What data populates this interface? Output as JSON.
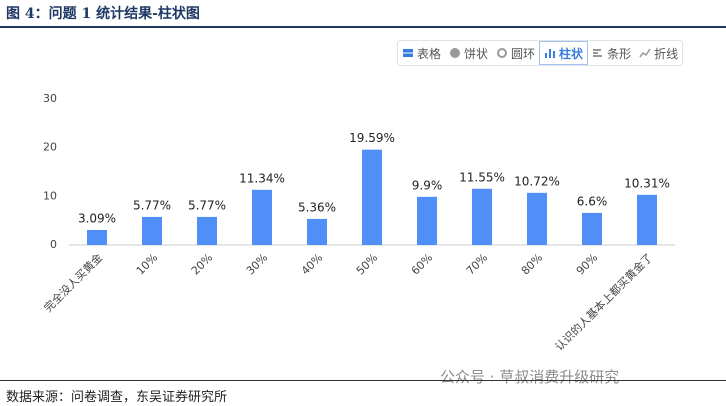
{
  "header": {
    "title": "图 4：问题 1 统计结果-柱状图"
  },
  "toolbar": {
    "buttons": [
      "表格",
      "饼状",
      "圆环",
      "柱状",
      "条形",
      "折线"
    ]
  },
  "chart_data": {
    "type": "bar",
    "categories": [
      "完全没人买黄金",
      "10%",
      "20%",
      "30%",
      "40%",
      "50%",
      "60%",
      "70%",
      "80%",
      "90%",
      "认识的人基本上都买黄金了"
    ],
    "values": [
      3.09,
      5.77,
      5.77,
      11.34,
      5.36,
      19.59,
      9.9,
      11.55,
      10.72,
      6.6,
      10.31
    ],
    "value_labels": [
      "3.09%",
      "5.77%",
      "5.77%",
      "11.34%",
      "5.36%",
      "19.59%",
      "9.9%",
      "11.55%",
      "10.72%",
      "6.6%",
      "10.31%"
    ],
    "color": "#4f8ff7",
    "ylim": [
      0,
      30
    ],
    "yticks": [
      0,
      10,
      20,
      30
    ],
    "grid": false
  },
  "watermark": "公众号 · 草叔消费升级研究",
  "footer": {
    "source": "数据来源：问卷调查，东吴证券研究所"
  }
}
